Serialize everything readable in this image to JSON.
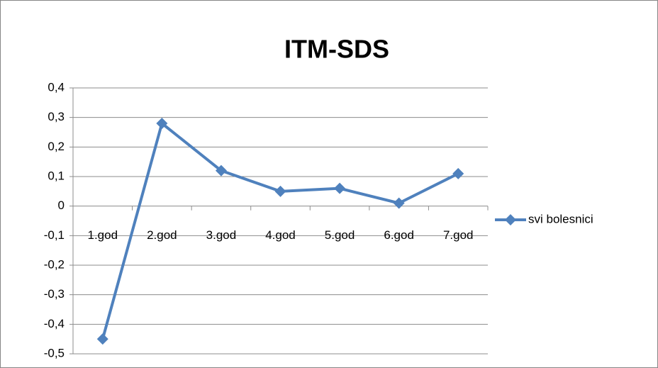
{
  "chart_data": {
    "type": "line",
    "title": "ITM-SDS",
    "categories": [
      "1.god",
      "2.god",
      "3.god",
      "4.god",
      "5.god",
      "6.god",
      "7.god"
    ],
    "series": [
      {
        "name": "svi bolesnici",
        "color": "#4f81bd",
        "values": [
          -0.45,
          0.28,
          0.12,
          0.05,
          0.06,
          0.01,
          0.11
        ]
      }
    ],
    "ylim": [
      -0.5,
      0.4
    ],
    "yticks": [
      {
        "value": -0.5,
        "label": "-0,5"
      },
      {
        "value": -0.4,
        "label": "-0,4"
      },
      {
        "value": -0.3,
        "label": "-0,3"
      },
      {
        "value": -0.2,
        "label": "-0,2"
      },
      {
        "value": -0.1,
        "label": "-0,1"
      },
      0,
      {
        "value": 0.1,
        "label": "0,1"
      },
      {
        "value": 0.2,
        "label": "0,2"
      },
      {
        "value": 0.3,
        "label": "0,3"
      },
      {
        "value": 0.4,
        "label": "0,4"
      }
    ],
    "grid": true,
    "legend": "right"
  }
}
